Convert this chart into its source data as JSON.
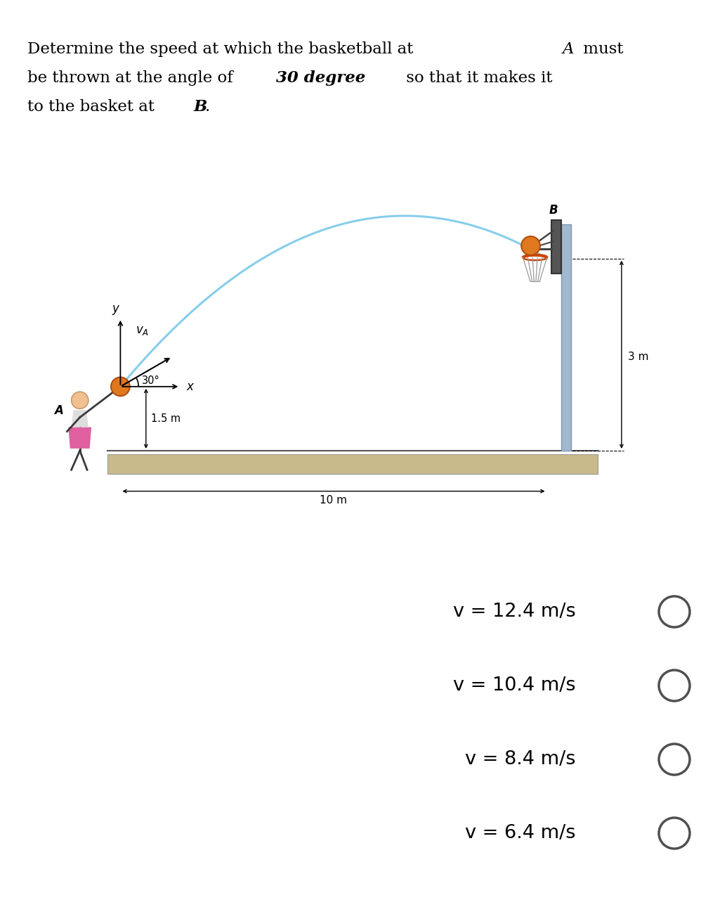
{
  "background_color": "#ffffff",
  "title": {
    "line1_normal": "Determine the speed at which the basketball at ",
    "line1_italic": "A",
    "line1_end": " must",
    "line2_normal1": "be thrown at the angle of ",
    "line2_bold": "30 degree",
    "line2_normal2": " so that it makes it",
    "line3_normal": "to the basket at ",
    "line3_bolditalic": "B",
    "line3_end": "."
  },
  "options": [
    "v = 12.4 m/s",
    "v = 10.4 m/s",
    "v = 8.4 m/s",
    "v = 6.4 m/s"
  ],
  "diagram": {
    "arc_color": "#87ceeb",
    "ground_fill": "#c8ba8a",
    "pole_color": "#a0b8d0",
    "ball_color": "#e07820",
    "ball_edge": "#b05010"
  }
}
